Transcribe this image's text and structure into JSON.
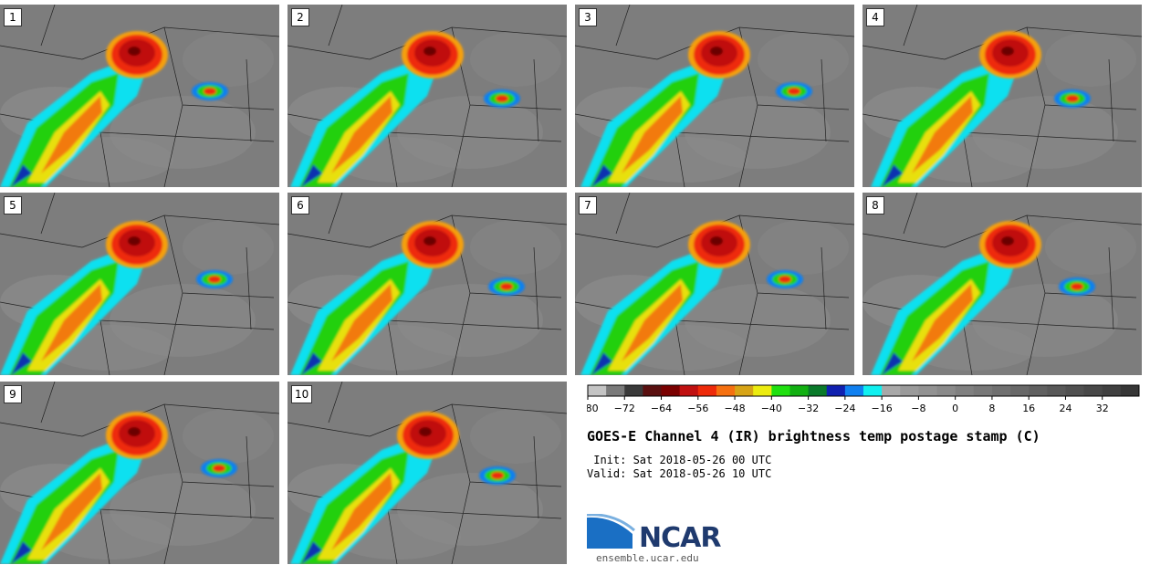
{
  "panels": [
    {
      "label": "1"
    },
    {
      "label": "2"
    },
    {
      "label": "3"
    },
    {
      "label": "4"
    },
    {
      "label": "5"
    },
    {
      "label": "6"
    },
    {
      "label": "7"
    },
    {
      "label": "8"
    },
    {
      "label": "9"
    },
    {
      "label": "10"
    }
  ],
  "colorbar": {
    "ticks": [
      "−80",
      "−72",
      "−64",
      "−56",
      "−48",
      "−40",
      "−32",
      "−24",
      "−16",
      "−8",
      "0",
      "8",
      "16",
      "24",
      "32"
    ],
    "colors": [
      "#c4c4c4",
      "#7a7a7a",
      "#3a3a3a",
      "#5a1010",
      "#7a0000",
      "#c01010",
      "#ee2a0a",
      "#f57010",
      "#d7a416",
      "#ecec10",
      "#20e010",
      "#12b012",
      "#0a7a2a",
      "#1020b0",
      "#1080f0",
      "#10f0f0",
      "#a8a8a8",
      "#9a9a9a",
      "#929292",
      "#8a8a8a",
      "#808080",
      "#787878",
      "#707070",
      "#686868",
      "#606060",
      "#585858",
      "#505050",
      "#484848",
      "#404040",
      "#363636"
    ]
  },
  "title": "GOES-E Channel 4 (IR) brightness temp postage stamp (C)",
  "init_line": " Init: Sat 2018-05-26 00 UTC",
  "valid_line": "Valid: Sat 2018-05-26 10 UTC",
  "logo": {
    "name": "NCAR",
    "site": "ensemble.ucar.edu"
  }
}
